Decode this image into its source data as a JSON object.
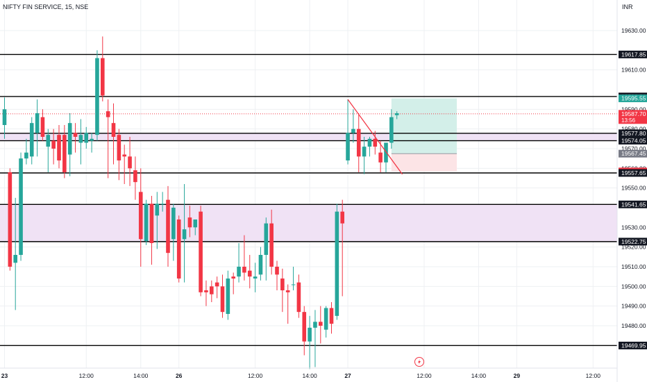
{
  "header": {
    "symbol": "NIFTY FIN SERVICE, 15, NSE",
    "currency": "INR"
  },
  "colors": {
    "up": "#26a69a",
    "down": "#f23645",
    "zone": "#f0e2f5",
    "line": "#000000",
    "trend": "#f23645",
    "target": "#d3efe9",
    "stop": "#fce4e6",
    "current": "#f23645",
    "grid": "#eef0f3"
  },
  "icons": {
    "alert": "lightning-bolt-icon"
  },
  "chart_data": {
    "type": "candlestick",
    "title": "NIFTY FIN SERVICE, 15, NSE",
    "ylim": [
      19462,
      19642
    ],
    "y_ticks": [
      19630,
      19610,
      19590,
      19580,
      19570,
      19560,
      19550,
      19530,
      19520,
      19510,
      19500,
      19490,
      19480
    ],
    "x_ticks": [
      {
        "label": "23",
        "i": 0
      },
      {
        "label": "12:00",
        "i": 15
      },
      {
        "label": "14:00",
        "i": 25
      },
      {
        "label": "26",
        "i": 32
      },
      {
        "label": "12:00",
        "i": 46
      },
      {
        "label": "14:00",
        "i": 56
      },
      {
        "label": "27",
        "i": 63
      },
      {
        "label": "12:00",
        "i": 77
      },
      {
        "label": "14:00",
        "i": 87
      },
      {
        "label": "29",
        "i": 94
      },
      {
        "label": "12:00",
        "i": 108
      }
    ],
    "candles": [
      {
        "o": 19582,
        "h": 19596,
        "l": 19575,
        "c": 19590
      },
      {
        "o": 19558,
        "h": 19560,
        "l": 19508,
        "c": 19510
      },
      {
        "o": 19512,
        "h": 19545,
        "l": 19488,
        "c": 19516
      },
      {
        "o": 19516,
        "h": 19568,
        "l": 19513,
        "c": 19565
      },
      {
        "o": 19565,
        "h": 19575,
        "l": 19562,
        "c": 19568
      },
      {
        "o": 19566,
        "h": 19586,
        "l": 19562,
        "c": 19583
      },
      {
        "o": 19578,
        "h": 19595,
        "l": 19566,
        "c": 19588
      },
      {
        "o": 19586,
        "h": 19590,
        "l": 19574,
        "c": 19576
      },
      {
        "o": 19571,
        "h": 19580,
        "l": 19558,
        "c": 19577
      },
      {
        "o": 19574,
        "h": 19580,
        "l": 19562,
        "c": 19570
      },
      {
        "o": 19577,
        "h": 19582,
        "l": 19560,
        "c": 19564
      },
      {
        "o": 19577,
        "h": 19582,
        "l": 19555,
        "c": 19558
      },
      {
        "o": 19567,
        "h": 19588,
        "l": 19556,
        "c": 19583
      },
      {
        "o": 19578,
        "h": 19583,
        "l": 19568,
        "c": 19576
      },
      {
        "o": 19573,
        "h": 19585,
        "l": 19562,
        "c": 19577
      },
      {
        "o": 19573,
        "h": 19581,
        "l": 19570,
        "c": 19578
      },
      {
        "o": 19574,
        "h": 19578,
        "l": 19568,
        "c": 19575
      },
      {
        "o": 19577,
        "h": 19620,
        "l": 19574,
        "c": 19616
      },
      {
        "o": 19616,
        "h": 19627,
        "l": 19594,
        "c": 19597
      },
      {
        "o": 19589,
        "h": 19595,
        "l": 19555,
        "c": 19586
      },
      {
        "o": 19583,
        "h": 19593,
        "l": 19562,
        "c": 19576
      },
      {
        "o": 19577,
        "h": 19580,
        "l": 19554,
        "c": 19564
      },
      {
        "o": 19567,
        "h": 19572,
        "l": 19552,
        "c": 19566
      },
      {
        "o": 19566,
        "h": 19576,
        "l": 19551,
        "c": 19560
      },
      {
        "o": 19559,
        "h": 19566,
        "l": 19544,
        "c": 19553
      },
      {
        "o": 19548,
        "h": 19560,
        "l": 19510,
        "c": 19524
      },
      {
        "o": 19523,
        "h": 19544,
        "l": 19521,
        "c": 19542
      },
      {
        "o": 19542,
        "h": 19546,
        "l": 19511,
        "c": 19522
      },
      {
        "o": 19536,
        "h": 19548,
        "l": 19519,
        "c": 19542
      },
      {
        "o": 19542,
        "h": 19548,
        "l": 19538,
        "c": 19542
      },
      {
        "o": 19544,
        "h": 19551,
        "l": 19510,
        "c": 19517
      },
      {
        "o": 19524,
        "h": 19542,
        "l": 19513,
        "c": 19540
      },
      {
        "o": 19534,
        "h": 19536,
        "l": 19502,
        "c": 19504
      },
      {
        "o": 19524,
        "h": 19552,
        "l": 19502,
        "c": 19529
      },
      {
        "o": 19535,
        "h": 19541,
        "l": 19525,
        "c": 19530
      },
      {
        "o": 19530,
        "h": 19534,
        "l": 19526,
        "c": 19534
      },
      {
        "o": 19538,
        "h": 19541,
        "l": 19495,
        "c": 19497
      },
      {
        "o": 19498,
        "h": 19503,
        "l": 19490,
        "c": 19497
      },
      {
        "o": 19500,
        "h": 19503,
        "l": 19492,
        "c": 19496
      },
      {
        "o": 19502,
        "h": 19505,
        "l": 19494,
        "c": 19500
      },
      {
        "o": 19500,
        "h": 19506,
        "l": 19484,
        "c": 19487
      },
      {
        "o": 19486,
        "h": 19508,
        "l": 19483,
        "c": 19504
      },
      {
        "o": 19505,
        "h": 19507,
        "l": 19496,
        "c": 19504
      },
      {
        "o": 19505,
        "h": 19522,
        "l": 19502,
        "c": 19510
      },
      {
        "o": 19510,
        "h": 19526,
        "l": 19503,
        "c": 19507
      },
      {
        "o": 19508,
        "h": 19516,
        "l": 19499,
        "c": 19505
      },
      {
        "o": 19504,
        "h": 19512,
        "l": 19497,
        "c": 19505
      },
      {
        "o": 19506,
        "h": 19520,
        "l": 19503,
        "c": 19516
      },
      {
        "o": 19516,
        "h": 19535,
        "l": 19503,
        "c": 19532
      },
      {
        "o": 19532,
        "h": 19539,
        "l": 19506,
        "c": 19510
      },
      {
        "o": 19510,
        "h": 19513,
        "l": 19498,
        "c": 19506
      },
      {
        "o": 19504,
        "h": 19509,
        "l": 19487,
        "c": 19498
      },
      {
        "o": 19498,
        "h": 19501,
        "l": 19481,
        "c": 19497
      },
      {
        "o": 19501,
        "h": 19510,
        "l": 19498,
        "c": 19501
      },
      {
        "o": 19502,
        "h": 19506,
        "l": 19484,
        "c": 19487
      },
      {
        "o": 19487,
        "h": 19490,
        "l": 19465,
        "c": 19472
      },
      {
        "o": 19472,
        "h": 19485,
        "l": 19458,
        "c": 19479
      },
      {
        "o": 19479,
        "h": 19488,
        "l": 19459,
        "c": 19482
      },
      {
        "o": 19482,
        "h": 19490,
        "l": 19471,
        "c": 19480
      },
      {
        "o": 19478,
        "h": 19490,
        "l": 19474,
        "c": 19489
      },
      {
        "o": 19489,
        "h": 19492,
        "l": 19476,
        "c": 19481
      },
      {
        "o": 19485,
        "h": 19542,
        "l": 19483,
        "c": 19538
      },
      {
        "o": 19538,
        "h": 19544,
        "l": 19495,
        "c": 19532
      },
      {
        "o": 19564,
        "h": 19595,
        "l": 19562,
        "c": 19578
      },
      {
        "o": 19578,
        "h": 19590,
        "l": 19573,
        "c": 19580
      },
      {
        "o": 19580,
        "h": 19588,
        "l": 19558,
        "c": 19566
      },
      {
        "o": 19566,
        "h": 19576,
        "l": 19557,
        "c": 19571
      },
      {
        "o": 19571,
        "h": 19576,
        "l": 19566,
        "c": 19575
      },
      {
        "o": 19575,
        "h": 19579,
        "l": 19567,
        "c": 19571
      },
      {
        "o": 19568,
        "h": 19574,
        "l": 19558,
        "c": 19563
      },
      {
        "o": 19563,
        "h": 19572,
        "l": 19558,
        "c": 19573
      },
      {
        "o": 19573,
        "h": 19590,
        "l": 19570,
        "c": 19586
      },
      {
        "o": 19587,
        "h": 19589,
        "l": 19585,
        "c": 19588
      }
    ],
    "horizontal_lines": [
      19617.85,
      19596.5,
      19577.8,
      19574.05,
      19557.65,
      19541.65,
      19522.75,
      19469.95
    ],
    "zones": [
      [
        19574.05,
        19577.8
      ],
      [
        19522.75,
        19541.65
      ]
    ],
    "trendline": {
      "from": {
        "i": 63,
        "y": 19595
      },
      "to": {
        "i": 73,
        "y": 19557
      }
    },
    "position": {
      "start_i": 71,
      "end_i": 83,
      "entry": 19567.45,
      "target": 19595.55,
      "stop": 19558.4
    },
    "price_labels": [
      {
        "text": "19617.85",
        "y": 19617.85,
        "style": "line"
      },
      {
        "text": "19596.50",
        "y": 19596.5,
        "style": "line"
      },
      {
        "text": "19595.55",
        "y": 19595.55,
        "style": "target"
      },
      {
        "text": "19587.70",
        "sub": "13:56",
        "y": 19587.7,
        "style": "current"
      },
      {
        "text": "19577.80",
        "y": 19577.8,
        "style": "line"
      },
      {
        "text": "19574.05",
        "y": 19574.05,
        "style": "line"
      },
      {
        "text": "19567.45",
        "y": 19567.45,
        "style": "entry"
      },
      {
        "text": "19558.40",
        "y": 19558.4,
        "style": "stop"
      },
      {
        "text": "19557.65",
        "y": 19557.65,
        "style": "line"
      },
      {
        "text": "19541.65",
        "y": 19541.65,
        "style": "line"
      },
      {
        "text": "19522.75",
        "y": 19522.75,
        "style": "line"
      },
      {
        "text": "19469.95",
        "y": 19469.95,
        "style": "line"
      }
    ],
    "current_price": 19587.7
  }
}
